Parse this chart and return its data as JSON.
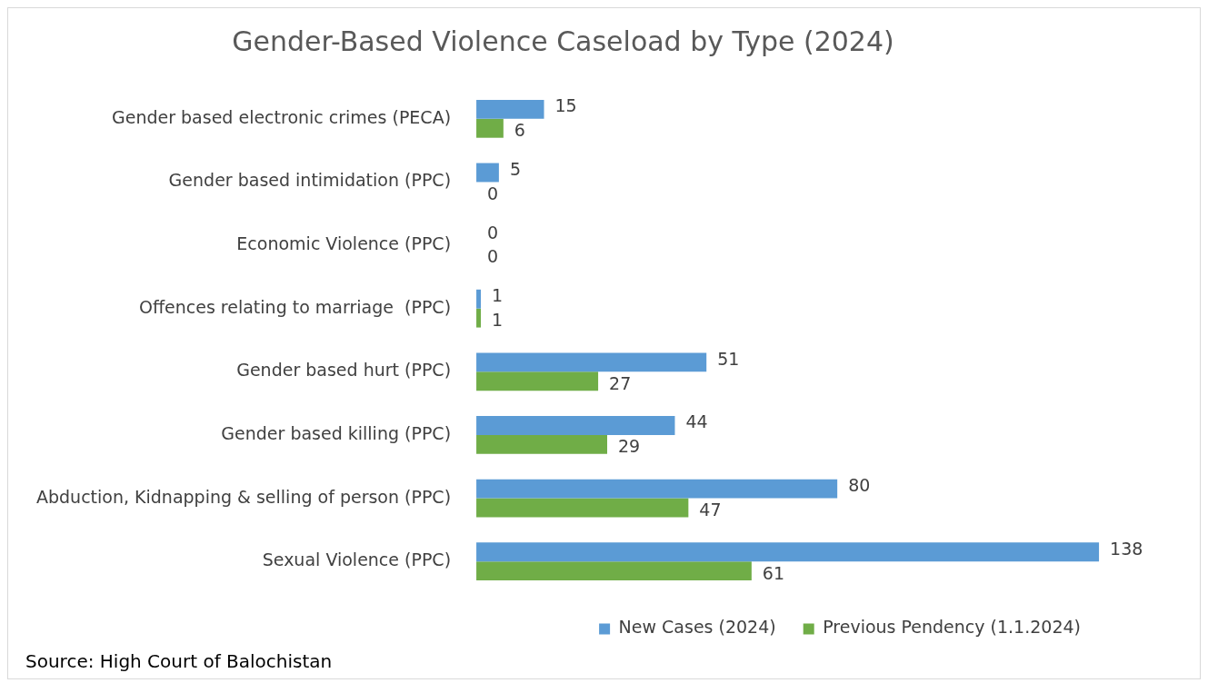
{
  "chart_data": {
    "type": "bar",
    "orientation": "horizontal",
    "title": "Gender-Based Violence Caseload by Type (2024)",
    "categories": [
      "Gender based electronic crimes (PECA)",
      "Gender based intimidation (PPC)",
      "Economic Violence (PPC)",
      "Offences relating to marriage  (PPC)",
      "Gender based hurt (PPC)",
      "Gender based killing (PPC)",
      "Abduction, Kidnapping & selling of person (PPC)",
      "Sexual Violence (PPC)"
    ],
    "series": [
      {
        "name": "New Cases (2024)",
        "color": "#5b9bd5",
        "values": [
          15,
          5,
          0,
          1,
          51,
          44,
          80,
          138
        ]
      },
      {
        "name": "Previous Pendency (1.1.2024)",
        "color": "#70ad47",
        "values": [
          6,
          0,
          0,
          1,
          27,
          29,
          47,
          61
        ]
      }
    ],
    "data_labels": true,
    "legend": "bottom",
    "annotations": [
      "Source: High Court of Balochistan"
    ]
  }
}
